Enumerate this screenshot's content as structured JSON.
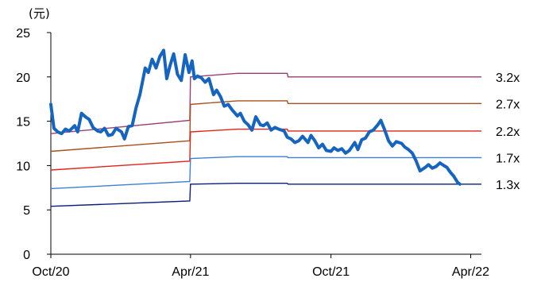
{
  "chart_data": {
    "type": "line",
    "title": "",
    "xlabel": "",
    "ylabel": "(元)",
    "ylim": [
      0,
      25
    ],
    "yticks": [
      0,
      5,
      10,
      15,
      20,
      25
    ],
    "x_range": [
      "2020-10-01",
      "2022-04-15"
    ],
    "xticks": [
      {
        "date": "2020-10-01",
        "label": "Oct/20"
      },
      {
        "date": "2021-04-01",
        "label": "Apr/21"
      },
      {
        "date": "2021-10-01",
        "label": "Oct/21"
      },
      {
        "date": "2022-04-01",
        "label": "Apr/22"
      }
    ],
    "grid": false,
    "legend": "none",
    "price_series": {
      "color": "#1565c0",
      "points": [
        [
          "2020-10-01",
          16.9
        ],
        [
          "2020-10-05",
          14.2
        ],
        [
          "2020-10-10",
          13.8
        ],
        [
          "2020-10-15",
          13.6
        ],
        [
          "2020-10-20",
          14.1
        ],
        [
          "2020-10-25",
          13.9
        ],
        [
          "2020-11-01",
          14.5
        ],
        [
          "2020-11-05",
          13.8
        ],
        [
          "2020-11-10",
          15.9
        ],
        [
          "2020-11-15",
          15.5
        ],
        [
          "2020-11-20",
          15.2
        ],
        [
          "2020-11-25",
          14.3
        ],
        [
          "2020-12-01",
          13.9
        ],
        [
          "2020-12-05",
          13.8
        ],
        [
          "2020-12-10",
          14.2
        ],
        [
          "2020-12-15",
          13.4
        ],
        [
          "2020-12-20",
          13.5
        ],
        [
          "2020-12-25",
          14.2
        ],
        [
          "2021-01-01",
          13.8
        ],
        [
          "2021-01-05",
          13.0
        ],
        [
          "2021-01-10",
          14.4
        ],
        [
          "2021-01-15",
          14.5
        ],
        [
          "2021-01-20",
          16.5
        ],
        [
          "2021-01-25",
          18.0
        ],
        [
          "2021-02-01",
          21.0
        ],
        [
          "2021-02-05",
          20.5
        ],
        [
          "2021-02-10",
          22.0
        ],
        [
          "2021-02-15",
          21.0
        ],
        [
          "2021-02-20",
          22.3
        ],
        [
          "2021-02-25",
          23.0
        ],
        [
          "2021-03-01",
          19.8
        ],
        [
          "2021-03-05",
          21.2
        ],
        [
          "2021-03-10",
          22.6
        ],
        [
          "2021-03-15",
          20.3
        ],
        [
          "2021-03-20",
          19.6
        ],
        [
          "2021-03-25",
          22.5
        ],
        [
          "2021-03-30",
          20.5
        ],
        [
          "2021-04-03",
          21.8
        ],
        [
          "2021-04-06",
          19.8
        ],
        [
          "2021-04-10",
          20.1
        ],
        [
          "2021-04-15",
          19.9
        ],
        [
          "2021-04-20",
          19.4
        ],
        [
          "2021-04-25",
          19.8
        ],
        [
          "2021-05-01",
          18.0
        ],
        [
          "2021-05-05",
          18.5
        ],
        [
          "2021-05-10",
          17.8
        ],
        [
          "2021-05-15",
          16.7
        ],
        [
          "2021-05-20",
          16.9
        ],
        [
          "2021-05-25",
          16.3
        ],
        [
          "2021-06-01",
          15.6
        ],
        [
          "2021-06-05",
          15.9
        ],
        [
          "2021-06-10",
          15.0
        ],
        [
          "2021-06-15",
          14.6
        ],
        [
          "2021-06-20",
          14.0
        ],
        [
          "2021-06-25",
          15.5
        ],
        [
          "2021-07-01",
          14.6
        ],
        [
          "2021-07-05",
          14.5
        ],
        [
          "2021-07-10",
          14.8
        ],
        [
          "2021-07-15",
          14.0
        ],
        [
          "2021-07-20",
          14.3
        ],
        [
          "2021-07-25",
          14.1
        ],
        [
          "2021-08-01",
          13.9
        ],
        [
          "2021-08-05",
          13.2
        ],
        [
          "2021-08-10",
          13.0
        ],
        [
          "2021-08-15",
          12.6
        ],
        [
          "2021-08-20",
          12.8
        ],
        [
          "2021-08-25",
          13.3
        ],
        [
          "2021-09-01",
          12.6
        ],
        [
          "2021-09-05",
          13.4
        ],
        [
          "2021-09-10",
          12.8
        ],
        [
          "2021-09-15",
          12.0
        ],
        [
          "2021-09-20",
          12.4
        ],
        [
          "2021-09-25",
          11.7
        ],
        [
          "2021-10-01",
          11.6
        ],
        [
          "2021-10-05",
          12.0
        ],
        [
          "2021-10-10",
          11.7
        ],
        [
          "2021-10-15",
          11.9
        ],
        [
          "2021-10-20",
          11.4
        ],
        [
          "2021-10-25",
          11.7
        ],
        [
          "2021-11-01",
          12.6
        ],
        [
          "2021-11-05",
          11.8
        ],
        [
          "2021-11-10",
          12.9
        ],
        [
          "2021-11-15",
          13.1
        ],
        [
          "2021-11-20",
          13.8
        ],
        [
          "2021-11-25",
          14.0
        ],
        [
          "2021-12-01",
          14.6
        ],
        [
          "2021-12-05",
          15.1
        ],
        [
          "2021-12-10",
          14.0
        ],
        [
          "2021-12-15",
          12.8
        ],
        [
          "2021-12-20",
          12.2
        ],
        [
          "2021-12-25",
          12.7
        ],
        [
          "2022-01-01",
          12.5
        ],
        [
          "2022-01-05",
          12.1
        ],
        [
          "2022-01-10",
          11.8
        ],
        [
          "2022-01-15",
          11.4
        ],
        [
          "2022-01-20",
          10.5
        ],
        [
          "2022-01-25",
          9.4
        ],
        [
          "2022-02-01",
          9.8
        ],
        [
          "2022-02-05",
          10.1
        ],
        [
          "2022-02-10",
          9.7
        ],
        [
          "2022-02-15",
          9.9
        ],
        [
          "2022-02-20",
          10.3
        ],
        [
          "2022-02-25",
          10.0
        ],
        [
          "2022-03-01",
          9.8
        ],
        [
          "2022-03-05",
          9.3
        ],
        [
          "2022-03-10",
          8.8
        ],
        [
          "2022-03-15",
          8.1
        ],
        [
          "2022-03-18",
          7.9
        ]
      ]
    },
    "pb_bands": [
      {
        "label": "3.2x",
        "color": "#9b3e73",
        "points": [
          [
            "2020-10-01",
            13.6
          ],
          [
            "2021-03-31",
            15.1
          ],
          [
            "2021-04-01",
            20.0
          ],
          [
            "2021-06-01",
            20.4
          ],
          [
            "2021-08-05",
            20.4
          ],
          [
            "2021-08-06",
            20.0
          ],
          [
            "2022-04-15",
            20.0
          ]
        ]
      },
      {
        "label": "2.7x",
        "color": "#a8501e",
        "points": [
          [
            "2020-10-01",
            11.6
          ],
          [
            "2021-03-31",
            12.8
          ],
          [
            "2021-04-01",
            16.9
          ],
          [
            "2021-06-01",
            17.3
          ],
          [
            "2021-08-05",
            17.3
          ],
          [
            "2021-08-06",
            17.0
          ],
          [
            "2022-04-15",
            17.0
          ]
        ]
      },
      {
        "label": "2.2x",
        "color": "#e2231a",
        "points": [
          [
            "2020-10-01",
            9.5
          ],
          [
            "2021-03-31",
            10.5
          ],
          [
            "2021-04-01",
            13.8
          ],
          [
            "2021-06-01",
            14.1
          ],
          [
            "2021-08-05",
            14.1
          ],
          [
            "2021-08-06",
            13.9
          ],
          [
            "2022-04-15",
            13.9
          ]
        ]
      },
      {
        "label": "1.7x",
        "color": "#3e7fd6",
        "points": [
          [
            "2020-10-01",
            7.4
          ],
          [
            "2021-03-31",
            8.2
          ],
          [
            "2021-04-01",
            10.8
          ],
          [
            "2021-06-01",
            11.0
          ],
          [
            "2021-08-05",
            11.0
          ],
          [
            "2021-08-06",
            10.9
          ],
          [
            "2022-04-15",
            10.9
          ]
        ]
      },
      {
        "label": "1.3x",
        "color": "#0a1f7a",
        "points": [
          [
            "2020-10-01",
            5.4
          ],
          [
            "2021-03-31",
            6.0
          ],
          [
            "2021-04-01",
            7.9
          ],
          [
            "2021-06-01",
            8.0
          ],
          [
            "2021-08-05",
            8.0
          ],
          [
            "2021-08-06",
            7.9
          ],
          [
            "2022-04-15",
            7.9
          ]
        ]
      }
    ]
  }
}
